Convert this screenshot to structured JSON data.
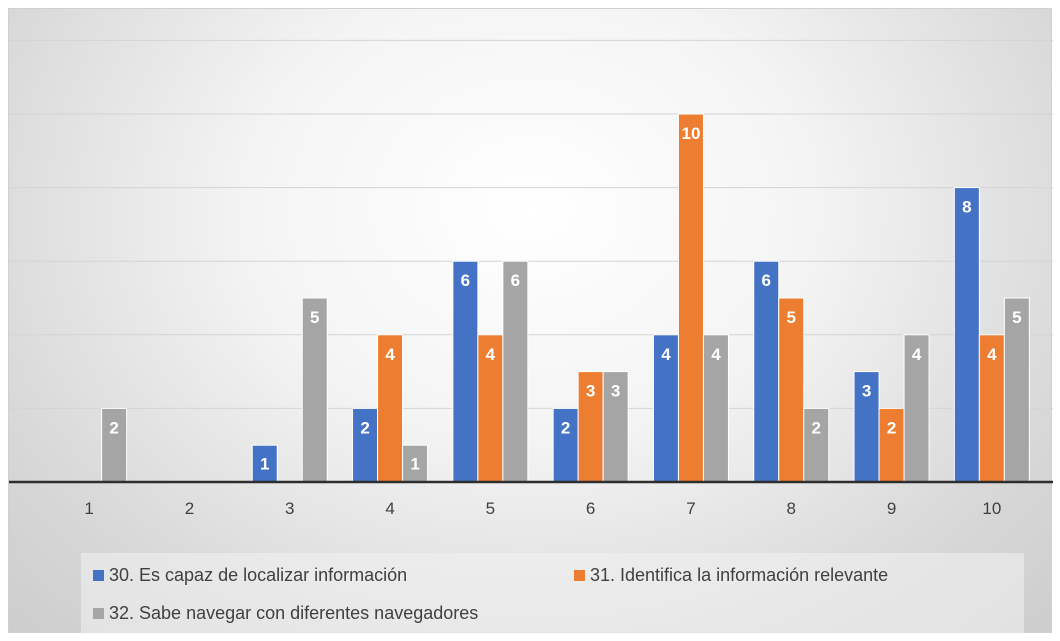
{
  "chart_data": {
    "type": "bar",
    "categories": [
      "1",
      "2",
      "3",
      "4",
      "5",
      "6",
      "7",
      "8",
      "9",
      "10"
    ],
    "series": [
      {
        "name": "30. Es capaz de localizar información",
        "color": "#4472C4",
        "values": [
          0,
          0,
          1,
          2,
          6,
          2,
          4,
          6,
          3,
          8
        ]
      },
      {
        "name": "31. Identifica la información relevante",
        "color": "#ED7D31",
        "values": [
          0,
          0,
          0,
          4,
          4,
          3,
          10,
          5,
          2,
          4
        ]
      },
      {
        "name": "32. Sabe navegar con diferentes navegadores",
        "color": "#A5A5A5",
        "values": [
          2,
          0,
          5,
          1,
          6,
          3,
          4,
          2,
          4,
          5
        ]
      }
    ],
    "ylim": [
      0,
      12
    ],
    "grid": true,
    "legend": "bottom-left",
    "data_labels": true
  }
}
